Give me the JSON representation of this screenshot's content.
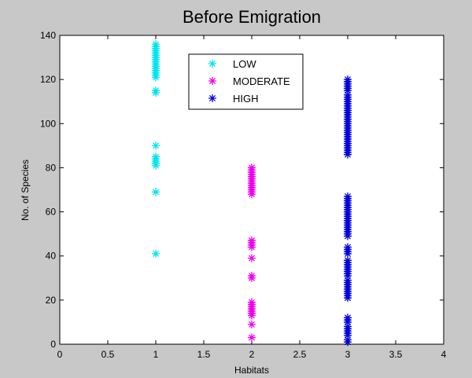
{
  "figure": {
    "background": "#c8c8c8",
    "axes_background": "#ffffff"
  },
  "chart_data": {
    "type": "scatter",
    "title": "Before Emigration",
    "xlabel": "Habitats",
    "ylabel": "No. of Species",
    "xlim": [
      0,
      4
    ],
    "ylim": [
      0,
      140
    ],
    "xticks": [
      "0",
      "0.5",
      "1",
      "1.5",
      "2",
      "2.5",
      "3",
      "3.5",
      "4"
    ],
    "yticks": [
      "0",
      "20",
      "40",
      "60",
      "80",
      "100",
      "120",
      "140"
    ],
    "grid": false,
    "legend_position": "top-center",
    "marker": "*",
    "series": [
      {
        "name": "LOW",
        "color": "#00e5ee",
        "x": 1,
        "y": [
          41,
          69,
          81,
          82,
          83,
          84,
          85,
          90,
          114,
          115,
          121,
          122,
          123,
          124,
          125,
          126,
          127,
          128,
          129,
          130,
          131,
          132,
          133,
          134,
          135,
          136
        ]
      },
      {
        "name": "MODERATE",
        "color": "#ee00ee",
        "x": 2,
        "y": [
          3,
          9,
          13,
          14,
          15,
          16,
          17,
          18,
          19,
          30,
          31,
          39,
          44,
          45,
          46,
          47,
          68,
          69,
          70,
          71,
          72,
          73,
          74,
          75,
          76,
          77,
          78,
          79,
          80
        ]
      },
      {
        "name": "HIGH",
        "color": "#0000dd",
        "x": 3,
        "y": [
          1,
          2,
          4,
          5,
          6,
          7,
          8,
          10,
          11,
          12,
          21,
          22,
          23,
          24,
          25,
          26,
          27,
          28,
          29,
          31,
          32,
          33,
          34,
          35,
          36,
          37,
          38,
          41,
          42,
          43,
          44,
          49,
          50,
          51,
          52,
          53,
          54,
          55,
          56,
          57,
          58,
          59,
          60,
          61,
          62,
          63,
          64,
          65,
          66,
          67,
          86,
          87,
          88,
          89,
          90,
          91,
          92,
          93,
          94,
          95,
          96,
          97,
          98,
          99,
          100,
          101,
          102,
          103,
          104,
          105,
          106,
          107,
          108,
          109,
          110,
          111,
          112,
          113,
          115,
          116,
          117,
          118,
          119,
          120
        ]
      }
    ]
  }
}
